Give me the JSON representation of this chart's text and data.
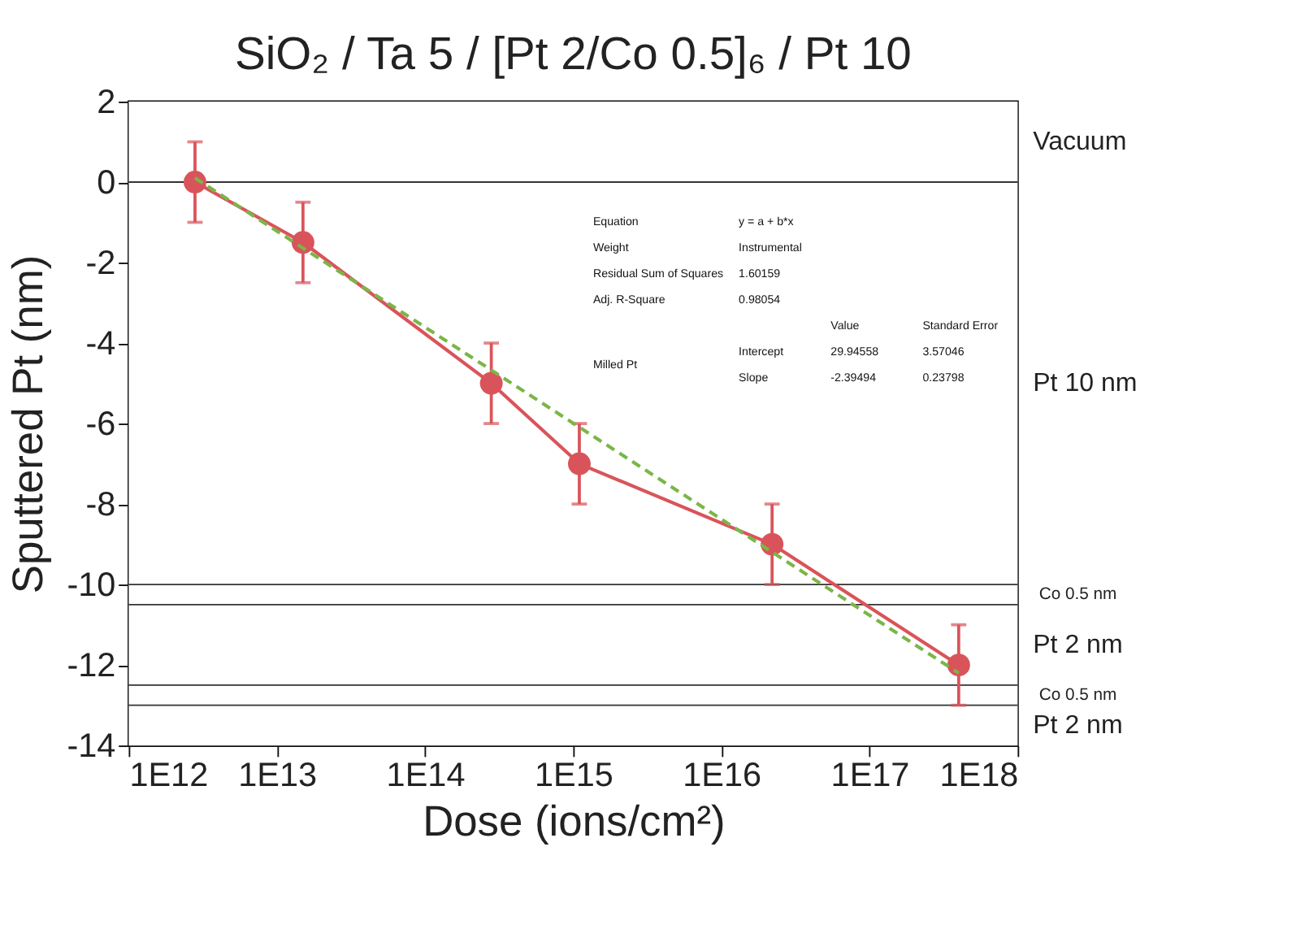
{
  "chart_data": {
    "type": "line",
    "title": "SiO₂ / Ta 5 / [Pt 2/Co 0.5]₆ / Pt 10",
    "xlabel": "Dose (ions/cm²)",
    "ylabel": "Sputtered Pt (nm)",
    "log": "x",
    "xlim": [
      1000000000000.0,
      1e+18
    ],
    "xticks": [
      {
        "value": 1000000000000.0,
        "label": "1E12"
      },
      {
        "value": 10000000000000.0,
        "label": "1E13"
      },
      {
        "value": 100000000000000.0,
        "label": "1E14"
      },
      {
        "value": 1000000000000000.0,
        "label": "1E15"
      },
      {
        "value": 1e+16,
        "label": "1E16"
      },
      {
        "value": 1e+17,
        "label": "1E17"
      },
      {
        "value": 1e+18,
        "label": "1E18"
      }
    ],
    "ylim": [
      -14,
      2
    ],
    "yticks": [
      -14,
      -12,
      -10,
      -8,
      -6,
      -4,
      -2,
      0,
      2
    ],
    "grid": false,
    "series": [
      {
        "color": "#d9545a",
        "marker": "circle",
        "line_style": "solid",
        "x": [
          2800000000000.0,
          15000000000000.0,
          280000000000000.0,
          1100000000000000.0,
          2.2e+16,
          4e+17
        ],
        "values": [
          0,
          -1.5,
          -5,
          -7,
          -9,
          -12
        ],
        "errors": [
          1,
          1,
          1,
          1,
          1,
          1
        ]
      },
      {
        "color": "#7ab648",
        "marker": "none",
        "line_style": "dashed",
        "x": [
          2800000000000.0,
          4e+17
        ],
        "values": [
          0.1,
          -12.2
        ]
      }
    ],
    "ref_lines": [
      {
        "axis": "y",
        "value": 0,
        "color": "#333333"
      },
      {
        "axis": "y",
        "value": -10,
        "color": "#333333"
      },
      {
        "axis": "y",
        "value": -10.5,
        "color": "#333333"
      },
      {
        "axis": "y",
        "value": -12.5,
        "color": "#333333"
      },
      {
        "axis": "y",
        "value": -13,
        "color": "#333333"
      }
    ],
    "bands": [
      {
        "axis": "y",
        "from": 2,
        "to": 0,
        "label": "Vacuum",
        "color": "#ffffff"
      },
      {
        "axis": "y",
        "from": 0,
        "to": -10,
        "label": "Pt 10 nm",
        "color": "#ffffff"
      },
      {
        "axis": "y",
        "from": -10,
        "to": -10.5,
        "label": "Co 0.5 nm",
        "color": "#ffffff"
      },
      {
        "axis": "y",
        "from": -10.5,
        "to": -12.5,
        "label": "Pt 2 nm",
        "color": "#ffffff"
      },
      {
        "axis": "y",
        "from": -12.5,
        "to": -13,
        "label": "Co 0.5 nm",
        "color": "#ffffff"
      },
      {
        "axis": "y",
        "from": -13,
        "to": -14,
        "label": "Pt 2 nm",
        "color": "#ffffff"
      }
    ],
    "annotations": [
      "Equation",
      "y = a + b*x",
      "Weight",
      "Instrumental",
      "Residual Sum of Squares",
      "1.60159",
      "Adj. R-Square",
      "0.98054",
      "Value",
      "Standard Error",
      "Milled Pt",
      "Intercept",
      "29.94558",
      "3.57046",
      "Slope",
      "-2.39494",
      "0.23798"
    ]
  }
}
